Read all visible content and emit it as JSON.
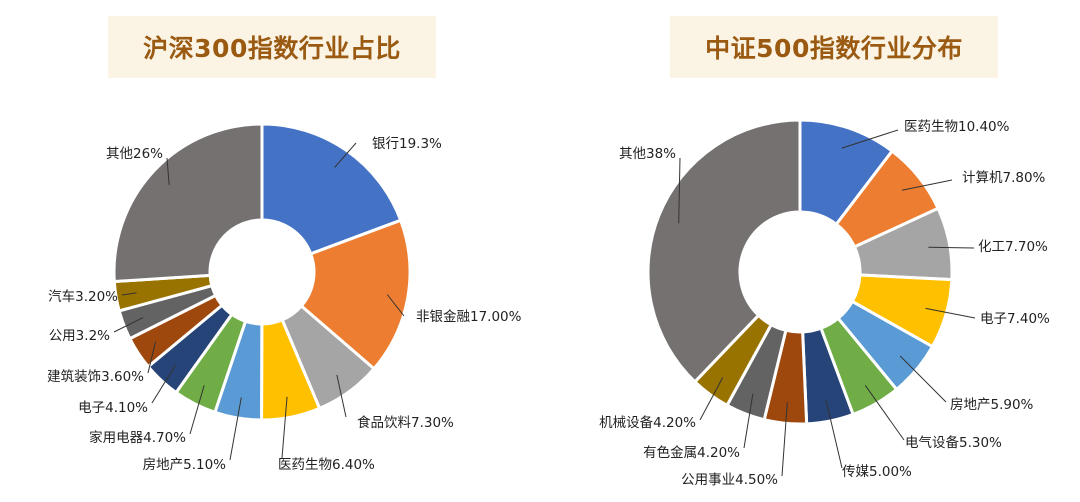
{
  "colors": {
    "title_bg": "#fbf3e3",
    "title_text": "#9a5a12"
  },
  "chart_data": [
    {
      "type": "pie",
      "title": "沪深300指数行业占比",
      "slices": [
        {
          "label": "银行19.3%",
          "name": "银行",
          "value": 19.3,
          "color": "#4472c4"
        },
        {
          "label": "非银金融17.00%",
          "name": "非银金融",
          "value": 17.0,
          "color": "#ed7d31"
        },
        {
          "label": "食品饮料7.30%",
          "name": "食品饮料",
          "value": 7.3,
          "color": "#a5a5a5"
        },
        {
          "label": "医药生物6.40%",
          "name": "医药生物",
          "value": 6.4,
          "color": "#ffc000"
        },
        {
          "label": "房地产5.10%",
          "name": "房地产",
          "value": 5.1,
          "color": "#5b9bd5"
        },
        {
          "label": "家用电器4.70%",
          "name": "家用电器",
          "value": 4.7,
          "color": "#70ad47"
        },
        {
          "label": "电子4.10%",
          "name": "电子",
          "value": 4.1,
          "color": "#264478"
        },
        {
          "label": "建筑装饰3.60%",
          "name": "建筑装饰",
          "value": 3.6,
          "color": "#9e480e"
        },
        {
          "label": "公用3.2%",
          "name": "公用",
          "value": 3.2,
          "color": "#636363"
        },
        {
          "label": "汽车3.20%",
          "name": "汽车",
          "value": 3.2,
          "color": "#997300"
        },
        {
          "label": "其他26%",
          "name": "其他",
          "value": 26,
          "color": "#767171"
        }
      ]
    },
    {
      "type": "pie",
      "title": "中证500指数行业分布",
      "slices": [
        {
          "label": "医药生物10.40%",
          "name": "医药生物",
          "value": 10.4,
          "color": "#4472c4"
        },
        {
          "label": "计算机7.80%",
          "name": "计算机",
          "value": 7.8,
          "color": "#ed7d31"
        },
        {
          "label": "化工7.70%",
          "name": "化工",
          "value": 7.7,
          "color": "#a5a5a5"
        },
        {
          "label": "电子7.40%",
          "name": "电子",
          "value": 7.4,
          "color": "#ffc000"
        },
        {
          "label": "房地产5.90%",
          "name": "房地产",
          "value": 5.9,
          "color": "#5b9bd5"
        },
        {
          "label": "电气设备5.30%",
          "name": "电气设备",
          "value": 5.3,
          "color": "#70ad47"
        },
        {
          "label": "传媒5.00%",
          "name": "传媒",
          "value": 5.0,
          "color": "#264478"
        },
        {
          "label": "公用事业4.50%",
          "name": "公用事业",
          "value": 4.5,
          "color": "#9e480e"
        },
        {
          "label": "有色金属4.20%",
          "name": "有色金属",
          "value": 4.2,
          "color": "#636363"
        },
        {
          "label": "机械设备4.20%",
          "name": "机械设备",
          "value": 4.2,
          "color": "#997300"
        },
        {
          "label": "其他38%",
          "name": "其他",
          "value": 38,
          "color": "#767171"
        }
      ]
    }
  ]
}
